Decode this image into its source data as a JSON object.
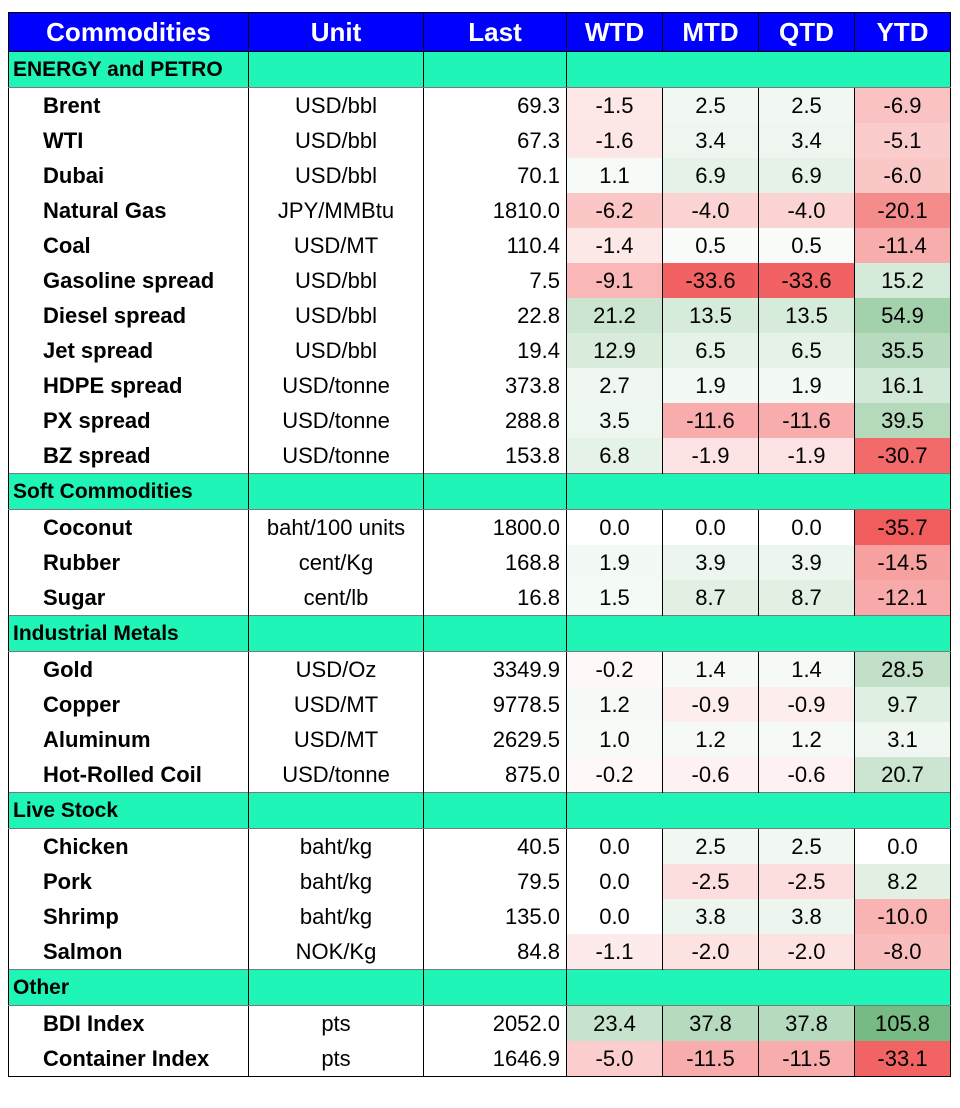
{
  "headers": [
    "Commodities",
    "Unit",
    "Last",
    "WTD",
    "MTD",
    "QTD",
    "YTD"
  ],
  "sections": [
    {
      "category": "ENERGY and PETRO",
      "rows": [
        {
          "name": "Brent",
          "unit": "USD/bbl",
          "last": "69.3",
          "wtd": "-1.5",
          "mtd": "2.5",
          "qtd": "2.5",
          "ytd": "-6.9"
        },
        {
          "name": "WTI",
          "unit": "USD/bbl",
          "last": "67.3",
          "wtd": "-1.6",
          "mtd": "3.4",
          "qtd": "3.4",
          "ytd": "-5.1"
        },
        {
          "name": "Dubai",
          "unit": "USD/bbl",
          "last": "70.1",
          "wtd": "1.1",
          "mtd": "6.9",
          "qtd": "6.9",
          "ytd": "-6.0"
        },
        {
          "name": "Natural Gas",
          "unit": "JPY/MMBtu",
          "last": "1810.0",
          "wtd": "-6.2",
          "mtd": "-4.0",
          "qtd": "-4.0",
          "ytd": "-20.1"
        },
        {
          "name": "Coal",
          "unit": "USD/MT",
          "last": "110.4",
          "wtd": "-1.4",
          "mtd": "0.5",
          "qtd": "0.5",
          "ytd": "-11.4"
        },
        {
          "name": "Gasoline spread",
          "unit": "USD/bbl",
          "last": "7.5",
          "wtd": "-9.1",
          "mtd": "-33.6",
          "qtd": "-33.6",
          "ytd": "15.2"
        },
        {
          "name": "Diesel spread",
          "unit": "USD/bbl",
          "last": "22.8",
          "wtd": "21.2",
          "mtd": "13.5",
          "qtd": "13.5",
          "ytd": "54.9"
        },
        {
          "name": "Jet spread",
          "unit": "USD/bbl",
          "last": "19.4",
          "wtd": "12.9",
          "mtd": "6.5",
          "qtd": "6.5",
          "ytd": "35.5"
        },
        {
          "name": "HDPE spread",
          "unit": "USD/tonne",
          "last": "373.8",
          "wtd": "2.7",
          "mtd": "1.9",
          "qtd": "1.9",
          "ytd": "16.1"
        },
        {
          "name": "PX spread",
          "unit": "USD/tonne",
          "last": "288.8",
          "wtd": "3.5",
          "mtd": "-11.6",
          "qtd": "-11.6",
          "ytd": "39.5"
        },
        {
          "name": "BZ spread",
          "unit": "USD/tonne",
          "last": "153.8",
          "wtd": "6.8",
          "mtd": "-1.9",
          "qtd": "-1.9",
          "ytd": "-30.7"
        }
      ]
    },
    {
      "category": "Soft Commodities",
      "rows": [
        {
          "name": "Coconut",
          "unit": "baht/100 units",
          "last": "1800.0",
          "wtd": "0.0",
          "mtd": "0.0",
          "qtd": "0.0",
          "ytd": "-35.7"
        },
        {
          "name": "Rubber",
          "unit": "cent/Kg",
          "last": "168.8",
          "wtd": "1.9",
          "mtd": "3.9",
          "qtd": "3.9",
          "ytd": "-14.5"
        },
        {
          "name": "Sugar",
          "unit": "cent/lb",
          "last": "16.8",
          "wtd": "1.5",
          "mtd": "8.7",
          "qtd": "8.7",
          "ytd": "-12.1"
        }
      ]
    },
    {
      "category": "Industrial Metals",
      "rows": [
        {
          "name": "Gold",
          "unit": "USD/Oz",
          "last": "3349.9",
          "wtd": "-0.2",
          "mtd": "1.4",
          "qtd": "1.4",
          "ytd": "28.5"
        },
        {
          "name": "Copper",
          "unit": "USD/MT",
          "last": "9778.5",
          "wtd": "1.2",
          "mtd": "-0.9",
          "qtd": "-0.9",
          "ytd": "9.7"
        },
        {
          "name": "Aluminum",
          "unit": "USD/MT",
          "last": "2629.5",
          "wtd": "1.0",
          "mtd": "1.2",
          "qtd": "1.2",
          "ytd": "3.1"
        },
        {
          "name": "Hot-Rolled Coil",
          "unit": "USD/tonne",
          "last": "875.0",
          "wtd": "-0.2",
          "mtd": "-0.6",
          "qtd": "-0.6",
          "ytd": "20.7"
        }
      ]
    },
    {
      "category": "Live Stock",
      "rows": [
        {
          "name": "Chicken",
          "unit": "baht/kg",
          "last": "40.5",
          "wtd": "0.0",
          "mtd": "2.5",
          "qtd": "2.5",
          "ytd": "0.0"
        },
        {
          "name": "Pork",
          "unit": "baht/kg",
          "last": "79.5",
          "wtd": "0.0",
          "mtd": "-2.5",
          "qtd": "-2.5",
          "ytd": "8.2"
        },
        {
          "name": "Shrimp",
          "unit": "baht/kg",
          "last": "135.0",
          "wtd": "0.0",
          "mtd": "3.8",
          "qtd": "3.8",
          "ytd": "-10.0"
        },
        {
          "name": "Salmon",
          "unit": "NOK/Kg",
          "last": "84.8",
          "wtd": "-1.1",
          "mtd": "-2.0",
          "qtd": "-2.0",
          "ytd": "-8.0"
        }
      ]
    },
    {
      "category": "Other",
      "rows": [
        {
          "name": "BDI Index",
          "unit": "pts",
          "last": "2052.0",
          "wtd": "23.4",
          "mtd": "37.8",
          "qtd": "37.8",
          "ytd": "105.8"
        },
        {
          "name": "Container Index",
          "unit": "pts",
          "last": "1646.9",
          "wtd": "-5.0",
          "mtd": "-11.5",
          "qtd": "-11.5",
          "ytd": "-33.1"
        }
      ]
    }
  ],
  "colors": {
    "header_bg": "#0000ff",
    "header_text": "#ffffff",
    "category_bg": "#1ef5b6",
    "positive": "#5fae6e",
    "negative": "#f04e4e",
    "neutral": "#ffffff"
  }
}
